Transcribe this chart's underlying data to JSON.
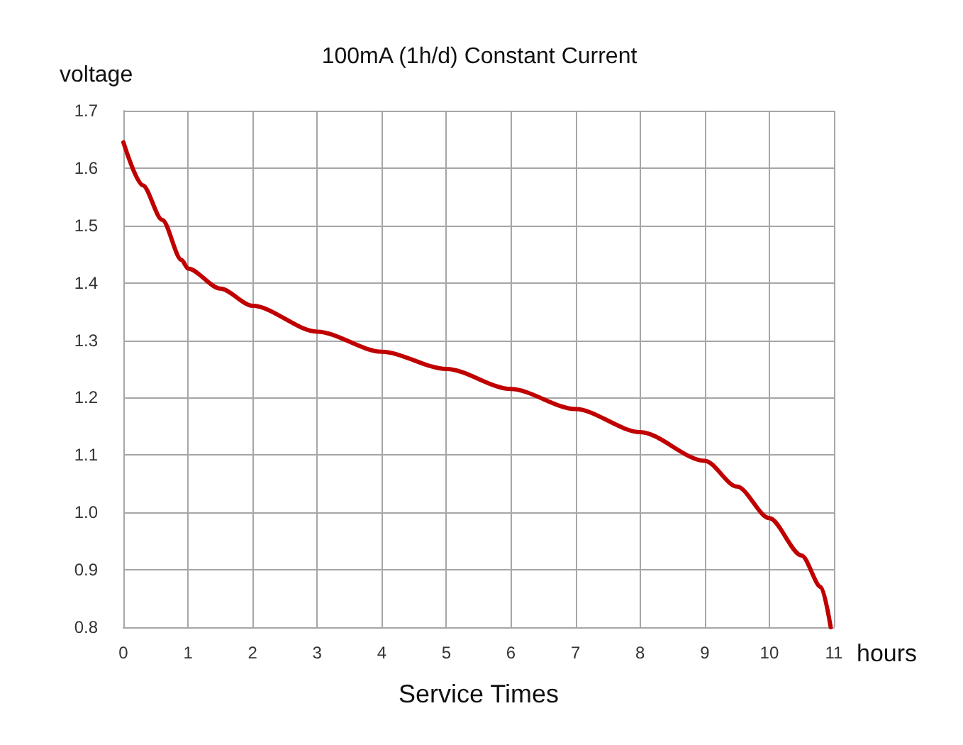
{
  "chart_data": {
    "type": "line",
    "title": "100mA (1h/d) Constant Current",
    "xlabel": "Service Times",
    "ylabel": "voltage",
    "annotations": [
      "hours"
    ],
    "x": [
      0,
      0.3,
      0.6,
      0.9,
      1,
      1.5,
      2,
      3,
      4,
      5,
      6,
      7,
      8,
      9,
      9.5,
      10,
      10.5,
      10.8,
      10.95
    ],
    "series": [
      {
        "color": "#c00000",
        "values": [
          1.645,
          1.57,
          1.51,
          1.44,
          1.425,
          1.39,
          1.36,
          1.315,
          1.28,
          1.25,
          1.215,
          1.18,
          1.14,
          1.09,
          1.045,
          0.99,
          0.925,
          0.87,
          0.8
        ]
      }
    ],
    "xlim": [
      0,
      11
    ],
    "xticks": [
      0,
      1,
      2,
      3,
      4,
      5,
      6,
      7,
      8,
      9,
      10,
      11
    ],
    "ylim": [
      0.8,
      1.7
    ],
    "yticks": [
      {
        "value": 0.8,
        "label": "0.8"
      },
      {
        "value": 0.9,
        "label": "0.9"
      },
      {
        "value": 1.0,
        "label": "1.0"
      },
      {
        "value": 1.1,
        "label": "1.1"
      },
      {
        "value": 1.2,
        "label": "1.2"
      },
      {
        "value": 1.3,
        "label": "1.3"
      },
      {
        "value": 1.4,
        "label": "1.4"
      },
      {
        "value": 1.5,
        "label": "1.5"
      },
      {
        "value": 1.6,
        "label": "1.6"
      },
      {
        "value": 1.7,
        "label": "1.7"
      }
    ],
    "grid": true,
    "marker": "none",
    "line_style": "solid"
  }
}
